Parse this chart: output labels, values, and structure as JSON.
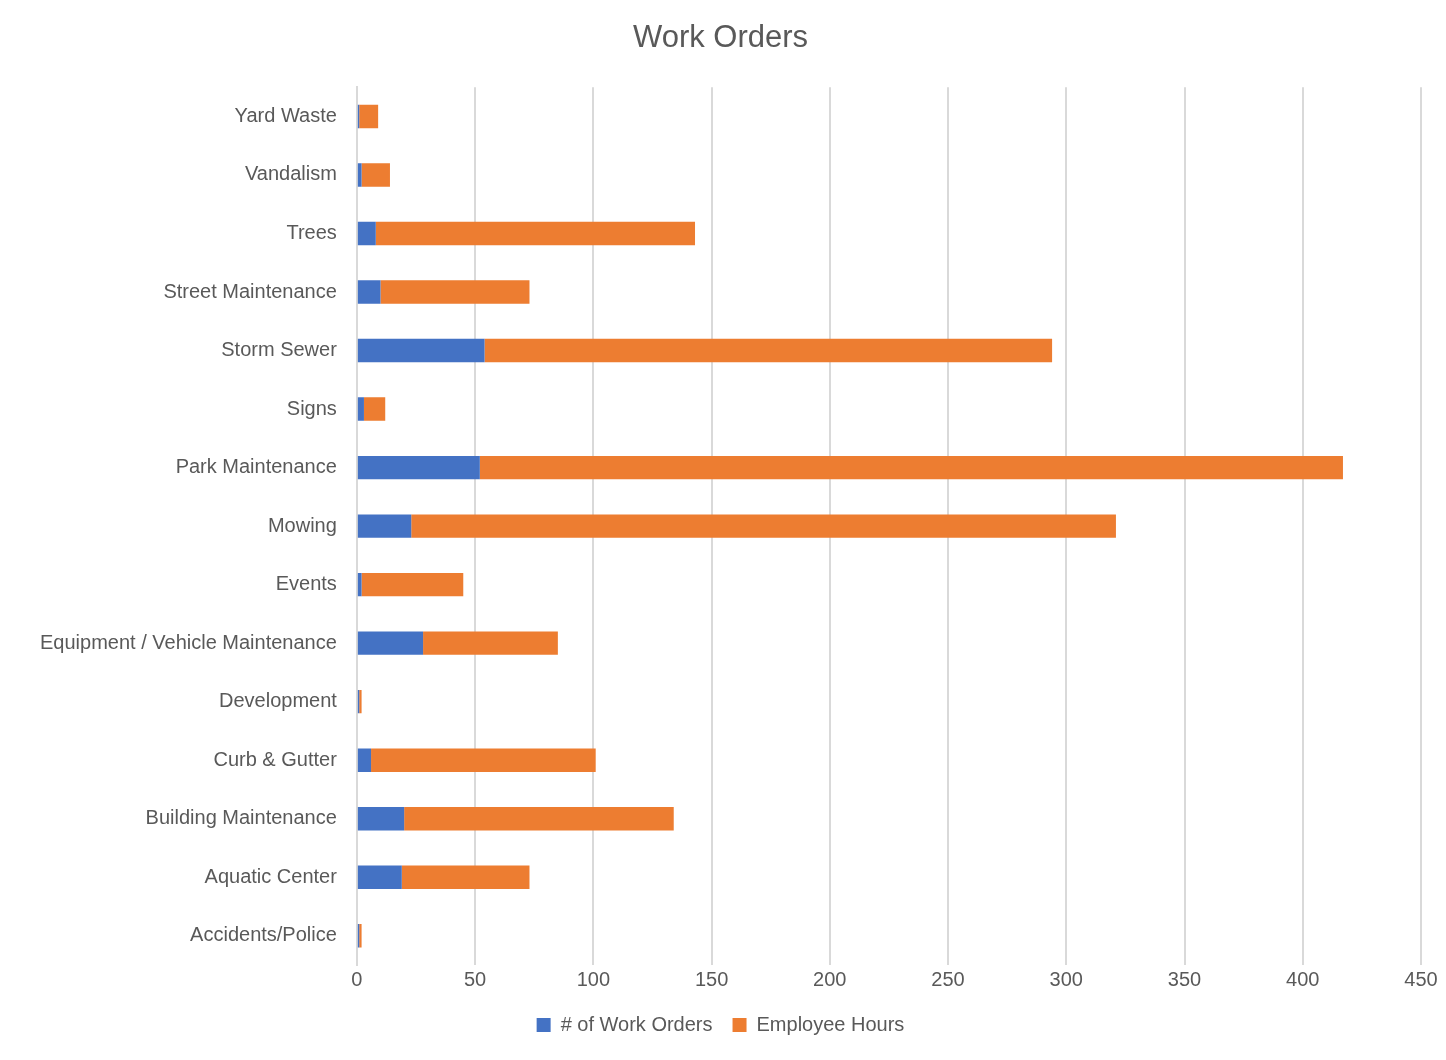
{
  "chart_data": {
    "type": "bar",
    "orientation": "horizontal",
    "stacked": true,
    "title": "Work Orders",
    "categories": [
      "Yard Waste",
      "Vandalism",
      "Trees",
      "Street Maintenance",
      "Storm Sewer",
      "Signs",
      "Park Maintenance",
      "Mowing",
      "Events",
      "Equipment / Vehicle Maintenance",
      "Development",
      "Curb & Gutter",
      "Building Maintenance",
      "Aquatic Center",
      "Accidents/Police"
    ],
    "series": [
      {
        "name": "# of Work Orders",
        "color": "#4472c4",
        "values": [
          1,
          2,
          8,
          10,
          54,
          3,
          52,
          23,
          2,
          28,
          1,
          6,
          20,
          19,
          1
        ]
      },
      {
        "name": "Employee Hours",
        "color": "#ed7d31",
        "values": [
          8,
          12,
          135,
          63,
          240,
          9,
          365,
          298,
          43,
          57,
          1,
          95,
          114,
          54,
          1
        ]
      }
    ],
    "xlim": [
      0,
      450
    ],
    "xticks": [
      0,
      50,
      100,
      150,
      200,
      250,
      300,
      350,
      400,
      450
    ],
    "grid": "x",
    "legend": "bottom"
  }
}
